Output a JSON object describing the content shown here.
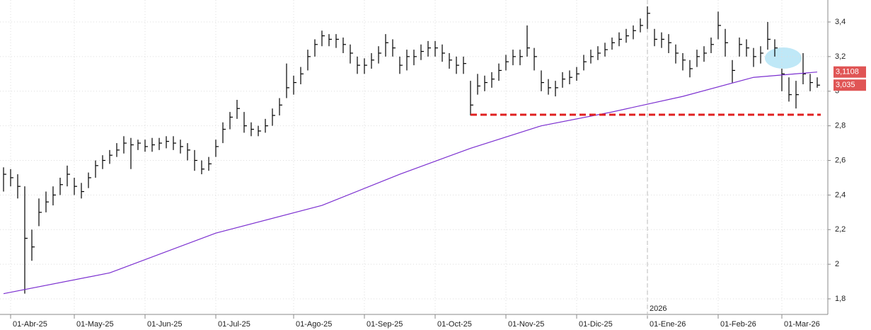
{
  "chart_data": {
    "type": "ohlc",
    "categories": [
      null,
      "01-Abr-25",
      null,
      null,
      null,
      null,
      null,
      null,
      null,
      null,
      "01-May-25",
      null,
      null,
      null,
      null,
      null,
      null,
      null,
      null,
      null,
      "01-Jun-25",
      null,
      null,
      null,
      null,
      null,
      null,
      null,
      null,
      null,
      "01-Jul-25",
      null,
      null,
      null,
      null,
      null,
      null,
      null,
      null,
      null,
      null,
      "01-Ago-25",
      null,
      null,
      null,
      null,
      null,
      null,
      null,
      null,
      null,
      "01-Sep-25",
      null,
      null,
      null,
      null,
      null,
      null,
      null,
      null,
      null,
      "01-Oct-25",
      null,
      null,
      null,
      null,
      null,
      null,
      null,
      null,
      null,
      "01-Nov-25",
      null,
      null,
      null,
      null,
      null,
      null,
      null,
      null,
      null,
      "01-Dic-25",
      null,
      null,
      null,
      null,
      null,
      null,
      null,
      null,
      null,
      "01-Ene-26",
      null,
      null,
      null,
      null,
      null,
      null,
      null,
      null,
      null,
      "01-Feb-26",
      null,
      null,
      null,
      null,
      null,
      null,
      null,
      null,
      "01-Mar-26",
      null,
      null,
      null,
      null,
      null
    ],
    "high": [
      2.56,
      2.55,
      2.52,
      2.45,
      2.2,
      2.38,
      2.42,
      2.45,
      2.5,
      2.57,
      2.5,
      2.47,
      2.53,
      2.6,
      2.63,
      2.66,
      2.7,
      2.74,
      2.73,
      2.72,
      2.72,
      2.73,
      2.73,
      2.74,
      2.74,
      2.72,
      2.7,
      2.66,
      2.6,
      2.62,
      2.72,
      2.82,
      2.88,
      2.95,
      2.88,
      2.82,
      2.8,
      2.84,
      2.9,
      2.96,
      3.16,
      3.09,
      3.14,
      3.24,
      3.3,
      3.35,
      3.33,
      3.33,
      3.31,
      3.27,
      3.2,
      3.19,
      3.22,
      3.26,
      3.33,
      3.3,
      3.2,
      3.24,
      3.24,
      3.27,
      3.29,
      3.29,
      3.27,
      3.22,
      3.2,
      3.2,
      3.06,
      3.1,
      3.09,
      3.11,
      3.16,
      3.21,
      3.24,
      3.24,
      3.38,
      3.25,
      3.12,
      3.07,
      3.06,
      3.11,
      3.12,
      3.14,
      3.21,
      3.24,
      3.26,
      3.28,
      3.31,
      3.34,
      3.36,
      3.38,
      3.42,
      3.49,
      3.36,
      3.34,
      3.33,
      3.27,
      3.22,
      3.18,
      3.24,
      3.26,
      3.31,
      3.46,
      3.36,
      3.18,
      3.31,
      3.3,
      3.25,
      3.26,
      3.4,
      3.3,
      3.13,
      3.08,
      3.06,
      3.22,
      3.1,
      3.08
    ],
    "low": [
      2.42,
      2.45,
      2.38,
      1.83,
      2.02,
      2.22,
      2.3,
      2.34,
      2.4,
      2.45,
      2.4,
      2.38,
      2.44,
      2.5,
      2.55,
      2.58,
      2.62,
      2.64,
      2.55,
      2.66,
      2.65,
      2.65,
      2.66,
      2.67,
      2.66,
      2.64,
      2.6,
      2.54,
      2.52,
      2.54,
      2.62,
      2.7,
      2.78,
      2.84,
      2.76,
      2.74,
      2.74,
      2.76,
      2.8,
      2.86,
      2.96,
      2.98,
      3.04,
      3.12,
      3.2,
      3.26,
      3.26,
      3.25,
      3.22,
      3.16,
      3.1,
      3.1,
      3.13,
      3.16,
      3.2,
      3.2,
      3.1,
      3.12,
      3.15,
      3.18,
      3.2,
      3.2,
      3.17,
      3.13,
      3.1,
      3.1,
      2.86,
      2.98,
      3.0,
      3.02,
      3.06,
      3.12,
      3.15,
      3.15,
      3.2,
      3.12,
      3.0,
      2.98,
      2.97,
      3.02,
      3.04,
      3.06,
      3.12,
      3.16,
      3.18,
      3.2,
      3.24,
      3.26,
      3.28,
      3.3,
      3.34,
      3.36,
      3.26,
      3.25,
      3.22,
      3.16,
      3.12,
      3.08,
      3.14,
      3.17,
      3.22,
      3.3,
      3.2,
      3.05,
      3.2,
      3.2,
      3.14,
      3.16,
      3.24,
      3.2,
      3.0,
      2.94,
      2.9,
      3.04,
      3.0,
      3.02
    ],
    "close": [
      2.52,
      2.5,
      2.45,
      2.15,
      2.1,
      2.3,
      2.36,
      2.4,
      2.46,
      2.52,
      2.45,
      2.42,
      2.5,
      2.57,
      2.6,
      2.63,
      2.66,
      2.7,
      2.69,
      2.7,
      2.68,
      2.69,
      2.7,
      2.71,
      2.7,
      2.68,
      2.66,
      2.6,
      2.55,
      2.58,
      2.68,
      2.78,
      2.85,
      2.9,
      2.8,
      2.78,
      2.77,
      2.8,
      2.86,
      2.92,
      3.02,
      3.05,
      3.1,
      3.2,
      3.27,
      3.32,
      3.3,
      3.3,
      3.27,
      3.22,
      3.15,
      3.15,
      3.18,
      3.22,
      3.28,
      3.25,
      3.15,
      3.2,
      3.2,
      3.23,
      3.25,
      3.25,
      3.22,
      3.18,
      3.15,
      3.16,
      2.92,
      3.03,
      3.05,
      3.07,
      3.12,
      3.17,
      3.2,
      3.2,
      3.25,
      3.2,
      3.05,
      3.02,
      3.02,
      3.07,
      3.08,
      3.1,
      3.17,
      3.2,
      3.22,
      3.24,
      3.28,
      3.3,
      3.32,
      3.35,
      3.38,
      3.45,
      3.3,
      3.3,
      3.28,
      3.22,
      3.18,
      3.13,
      3.2,
      3.22,
      3.27,
      3.38,
      3.28,
      3.12,
      3.27,
      3.25,
      3.2,
      3.22,
      3.3,
      3.25,
      3.1,
      2.98,
      2.98,
      3.1,
      3.05,
      3.035
    ],
    "color": "#000000",
    "ma": {
      "color": "#7b2fd0",
      "x": [
        0,
        15,
        30,
        45,
        56,
        66,
        76,
        86,
        96,
        106,
        115
      ],
      "values": [
        1.83,
        1.95,
        2.18,
        2.34,
        2.52,
        2.67,
        2.8,
        2.88,
        2.97,
        3.08,
        3.1108
      ]
    },
    "support": {
      "value": 2.864,
      "x": [
        66,
        115
      ],
      "color": "#e02020"
    },
    "year_marker": {
      "index": 91,
      "label": "2026"
    },
    "price_tags": [
      {
        "value": 3.1108,
        "label": "3,1108"
      },
      {
        "value": 3.035,
        "label": "3,035"
      }
    ],
    "ylim": [
      1.71,
      3.527
    ],
    "yticks": [
      {
        "value": 1.8,
        "label": "1,8"
      },
      2,
      {
        "value": 2.2,
        "label": "2,2"
      },
      {
        "value": 2.4,
        "label": "2,4"
      },
      {
        "value": 2.6,
        "label": "2,6"
      },
      {
        "value": 2.8,
        "label": "2,8"
      },
      3,
      {
        "value": 3.2,
        "label": "3,2"
      },
      {
        "value": 3.4,
        "label": "3,4"
      }
    ],
    "grid": true
  }
}
